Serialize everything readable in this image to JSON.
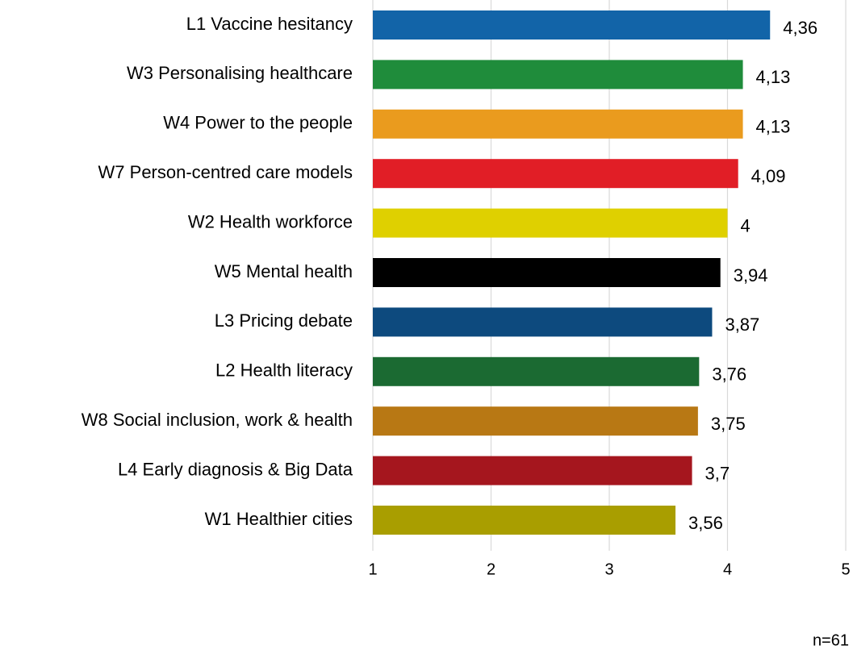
{
  "chart_data": {
    "type": "barh",
    "categories": [
      "L1 Vaccine hesitancy",
      "W3 Personalising healthcare",
      "W4 Power to the people",
      "W7 Person-centred care models",
      "W2 Health workforce",
      "W5 Mental health",
      "L3 Pricing debate",
      "L2 Health literacy",
      "W8 Social inclusion, work & health",
      "L4 Early diagnosis & Big Data",
      "W1 Healthier cities"
    ],
    "values": [
      4.36,
      4.13,
      4.13,
      4.09,
      4,
      3.94,
      3.87,
      3.76,
      3.75,
      3.7,
      3.56
    ],
    "value_labels": [
      "4,36",
      "4,13",
      "4,13",
      "4,09",
      "4",
      "3,94",
      "3,87",
      "3,76",
      "3,75",
      "3,7",
      "3,56"
    ],
    "colors": [
      "#1264a8",
      "#1f8c3b",
      "#ea9b1e",
      "#e11e26",
      "#dfd000",
      "#000000",
      "#0d4a7e",
      "#1b6a32",
      "#b87814",
      "#a5161e",
      "#a99e00"
    ],
    "xlim": [
      1,
      5
    ],
    "xticks": [
      1,
      2,
      3,
      4,
      5
    ],
    "grid": true,
    "annotations": [
      "n=61"
    ]
  }
}
